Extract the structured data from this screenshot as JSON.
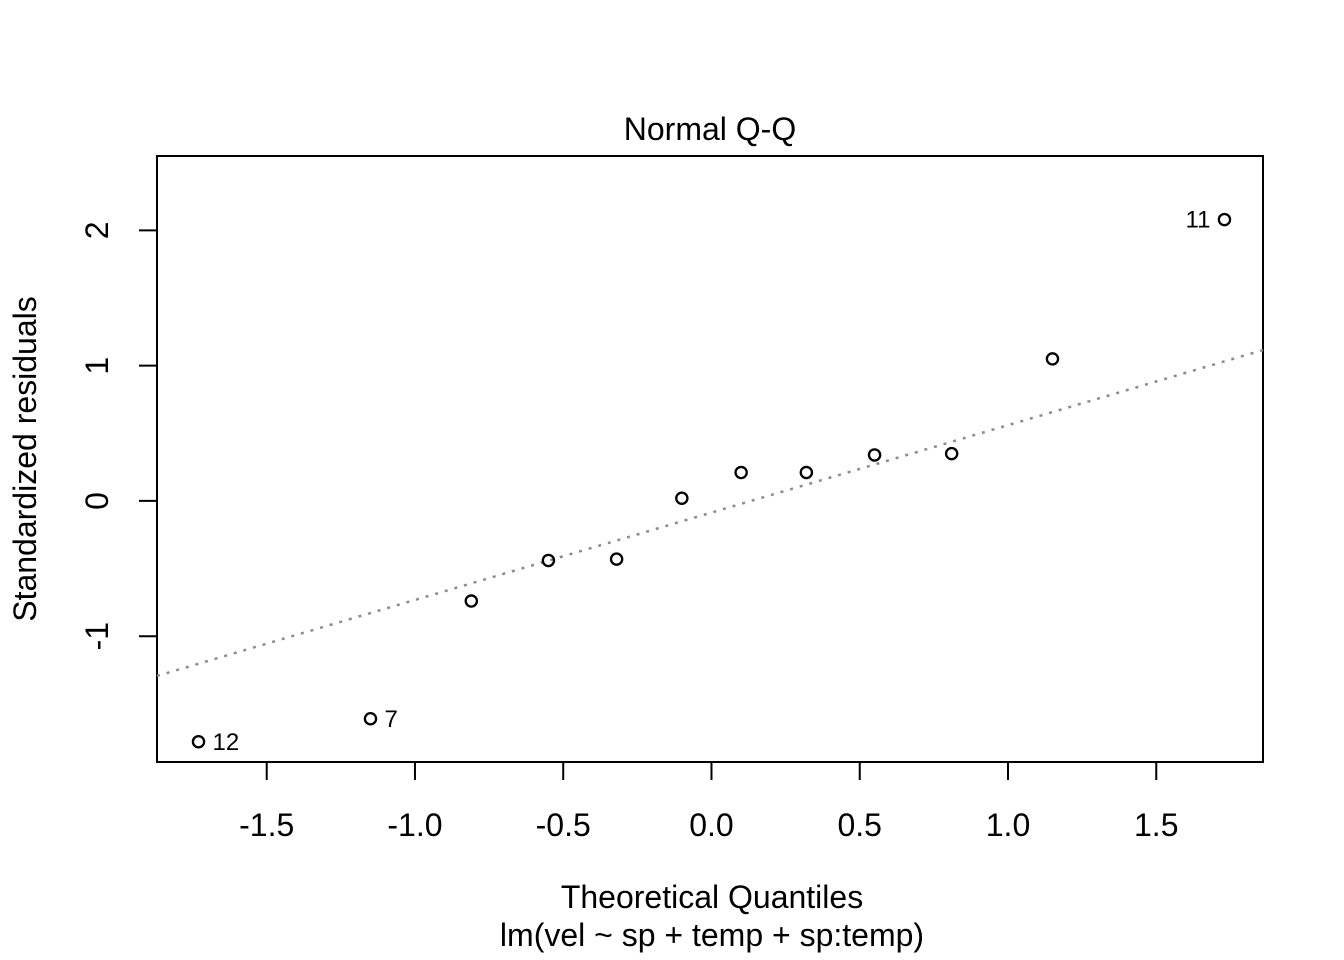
{
  "chart_data": {
    "type": "scatter",
    "title": "Normal Q-Q",
    "xlabel": "Theoretical Quantiles",
    "xlabel_line2": "lm(vel ~ sp + temp + sp:temp)",
    "ylabel": "Standardized residuals",
    "xlim": [
      -1.87,
      1.86
    ],
    "ylim": [
      -1.93,
      2.55
    ],
    "x_ticks": [
      -1.5,
      -1.0,
      -0.5,
      0.0,
      0.5,
      1.0,
      1.5
    ],
    "x_tick_labels": [
      "-1.5",
      "-1.0",
      "-0.5",
      "0.0",
      "0.5",
      "1.0",
      "1.5"
    ],
    "y_ticks": [
      -1,
      0,
      1,
      2
    ],
    "y_tick_labels": [
      "-1",
      "0",
      "1",
      "2"
    ],
    "grid": false,
    "legend": null,
    "points": [
      {
        "x": -1.73,
        "y": -1.78,
        "label": "12",
        "label_side": "right"
      },
      {
        "x": -1.15,
        "y": -1.61,
        "label": "7",
        "label_side": "right"
      },
      {
        "x": -0.81,
        "y": -0.74
      },
      {
        "x": -0.55,
        "y": -0.44
      },
      {
        "x": -0.32,
        "y": -0.43
      },
      {
        "x": -0.1,
        "y": 0.02
      },
      {
        "x": 0.1,
        "y": 0.21
      },
      {
        "x": 0.32,
        "y": 0.21
      },
      {
        "x": 0.55,
        "y": 0.34
      },
      {
        "x": 0.81,
        "y": 0.35
      },
      {
        "x": 1.15,
        "y": 1.05
      },
      {
        "x": 1.73,
        "y": 2.08,
        "label": "11",
        "label_side": "left"
      }
    ],
    "ref_line": {
      "type": "qqline",
      "slope": 0.646,
      "intercept": -0.086,
      "style": "dotted",
      "color": "#8c8c8c"
    },
    "point_style": {
      "shape": "open-circle",
      "stroke": "#000000",
      "radius": 5.6
    },
    "colors": {
      "foreground": "#000000",
      "background": "#ffffff",
      "ref_line": "#8c8c8c"
    }
  }
}
